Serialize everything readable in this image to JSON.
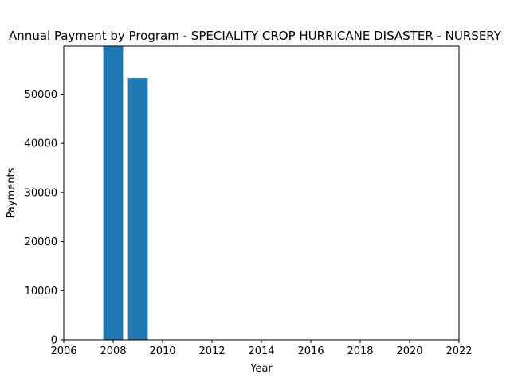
{
  "chart_data": {
    "type": "bar",
    "title": "Annual Payment by Program - SPECIALITY CROP HURRICANE DISASTER - NURSERY",
    "xlabel": "Year",
    "ylabel": "Payments",
    "x": [
      2008,
      2009
    ],
    "values": [
      59800,
      53300
    ],
    "xlim": [
      2006,
      2022
    ],
    "ylim": [
      0,
      59800
    ],
    "xticks": [
      2006,
      2008,
      2010,
      2012,
      2014,
      2016,
      2018,
      2020,
      2022
    ],
    "yticks": [
      0,
      10000,
      20000,
      30000,
      40000,
      50000
    ],
    "bar_width_years": 0.8,
    "bar_color": "#1f77b4",
    "grid": false,
    "legend": false
  }
}
